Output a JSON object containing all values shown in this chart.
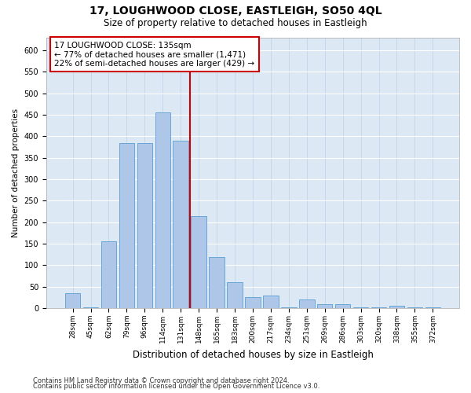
{
  "title": "17, LOUGHWOOD CLOSE, EASTLEIGH, SO50 4QL",
  "subtitle": "Size of property relative to detached houses in Eastleigh",
  "xlabel": "Distribution of detached houses by size in Eastleigh",
  "ylabel": "Number of detached properties",
  "categories": [
    "28sqm",
    "45sqm",
    "62sqm",
    "79sqm",
    "96sqm",
    "114sqm",
    "131sqm",
    "148sqm",
    "165sqm",
    "183sqm",
    "200sqm",
    "217sqm",
    "234sqm",
    "251sqm",
    "269sqm",
    "286sqm",
    "303sqm",
    "320sqm",
    "338sqm",
    "355sqm",
    "372sqm"
  ],
  "values": [
    35,
    2,
    155,
    385,
    385,
    455,
    390,
    215,
    120,
    60,
    25,
    30,
    2,
    20,
    10,
    10,
    2,
    2,
    5,
    2,
    2
  ],
  "bar_color": "#aec6e8",
  "bar_edge_color": "#5a9fd4",
  "vline_color": "#cc0000",
  "annotation_box_color": "#cc0000",
  "annotation_text": "17 LOUGHWOOD CLOSE: 135sqm\n← 77% of detached houses are smaller (1,471)\n22% of semi-detached houses are larger (429) →",
  "annotation_fontsize": 7.5,
  "ylim": [
    0,
    630
  ],
  "yticks": [
    0,
    50,
    100,
    150,
    200,
    250,
    300,
    350,
    400,
    450,
    500,
    550,
    600
  ],
  "footer1": "Contains HM Land Registry data © Crown copyright and database right 2024.",
  "footer2": "Contains public sector information licensed under the Open Government Licence v3.0.",
  "plot_bg_color": "#dce9f5",
  "title_fontsize": 10,
  "subtitle_fontsize": 8.5,
  "xlabel_fontsize": 8.5,
  "ylabel_fontsize": 7.5
}
